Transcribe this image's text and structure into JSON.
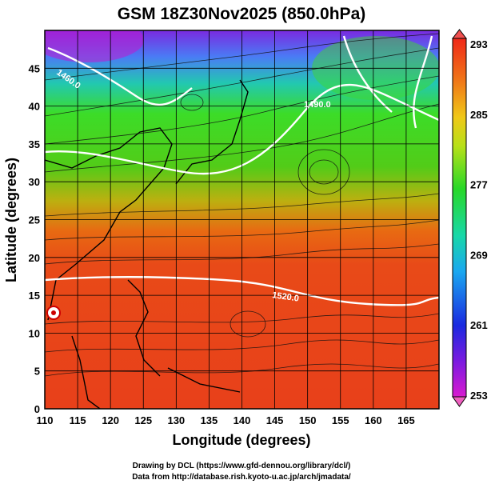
{
  "title": "GSM 18Z30Nov2025 (850.0hPa)",
  "x_axis": {
    "label": "Longitude (degrees)",
    "ticks": [
      "110",
      "115",
      "120",
      "125",
      "130",
      "135",
      "140",
      "145",
      "150",
      "155",
      "160",
      "165"
    ]
  },
  "y_axis": {
    "label": "Latitude  (degrees)",
    "ticks": [
      "0",
      "5",
      "10",
      "15",
      "20",
      "25",
      "30",
      "35",
      "40",
      "45"
    ]
  },
  "colorbar": {
    "ticks": [
      "253",
      "261",
      "269",
      "277",
      "285",
      "293"
    ]
  },
  "contour_labels": [
    "1460.0",
    "1490.0",
    "1520.0"
  ],
  "credits": {
    "line1": "Drawing by DCL (https://www.gfd-dennou.org/library/dcl/)",
    "line2": "Data from http://database.rish.kyoto-u.ac.jp/arch/jmadata/"
  },
  "colors": {
    "warm": "#e8401a",
    "mid": "#3cd22a",
    "cold": "#7830e0",
    "contour": "#ffffff"
  }
}
